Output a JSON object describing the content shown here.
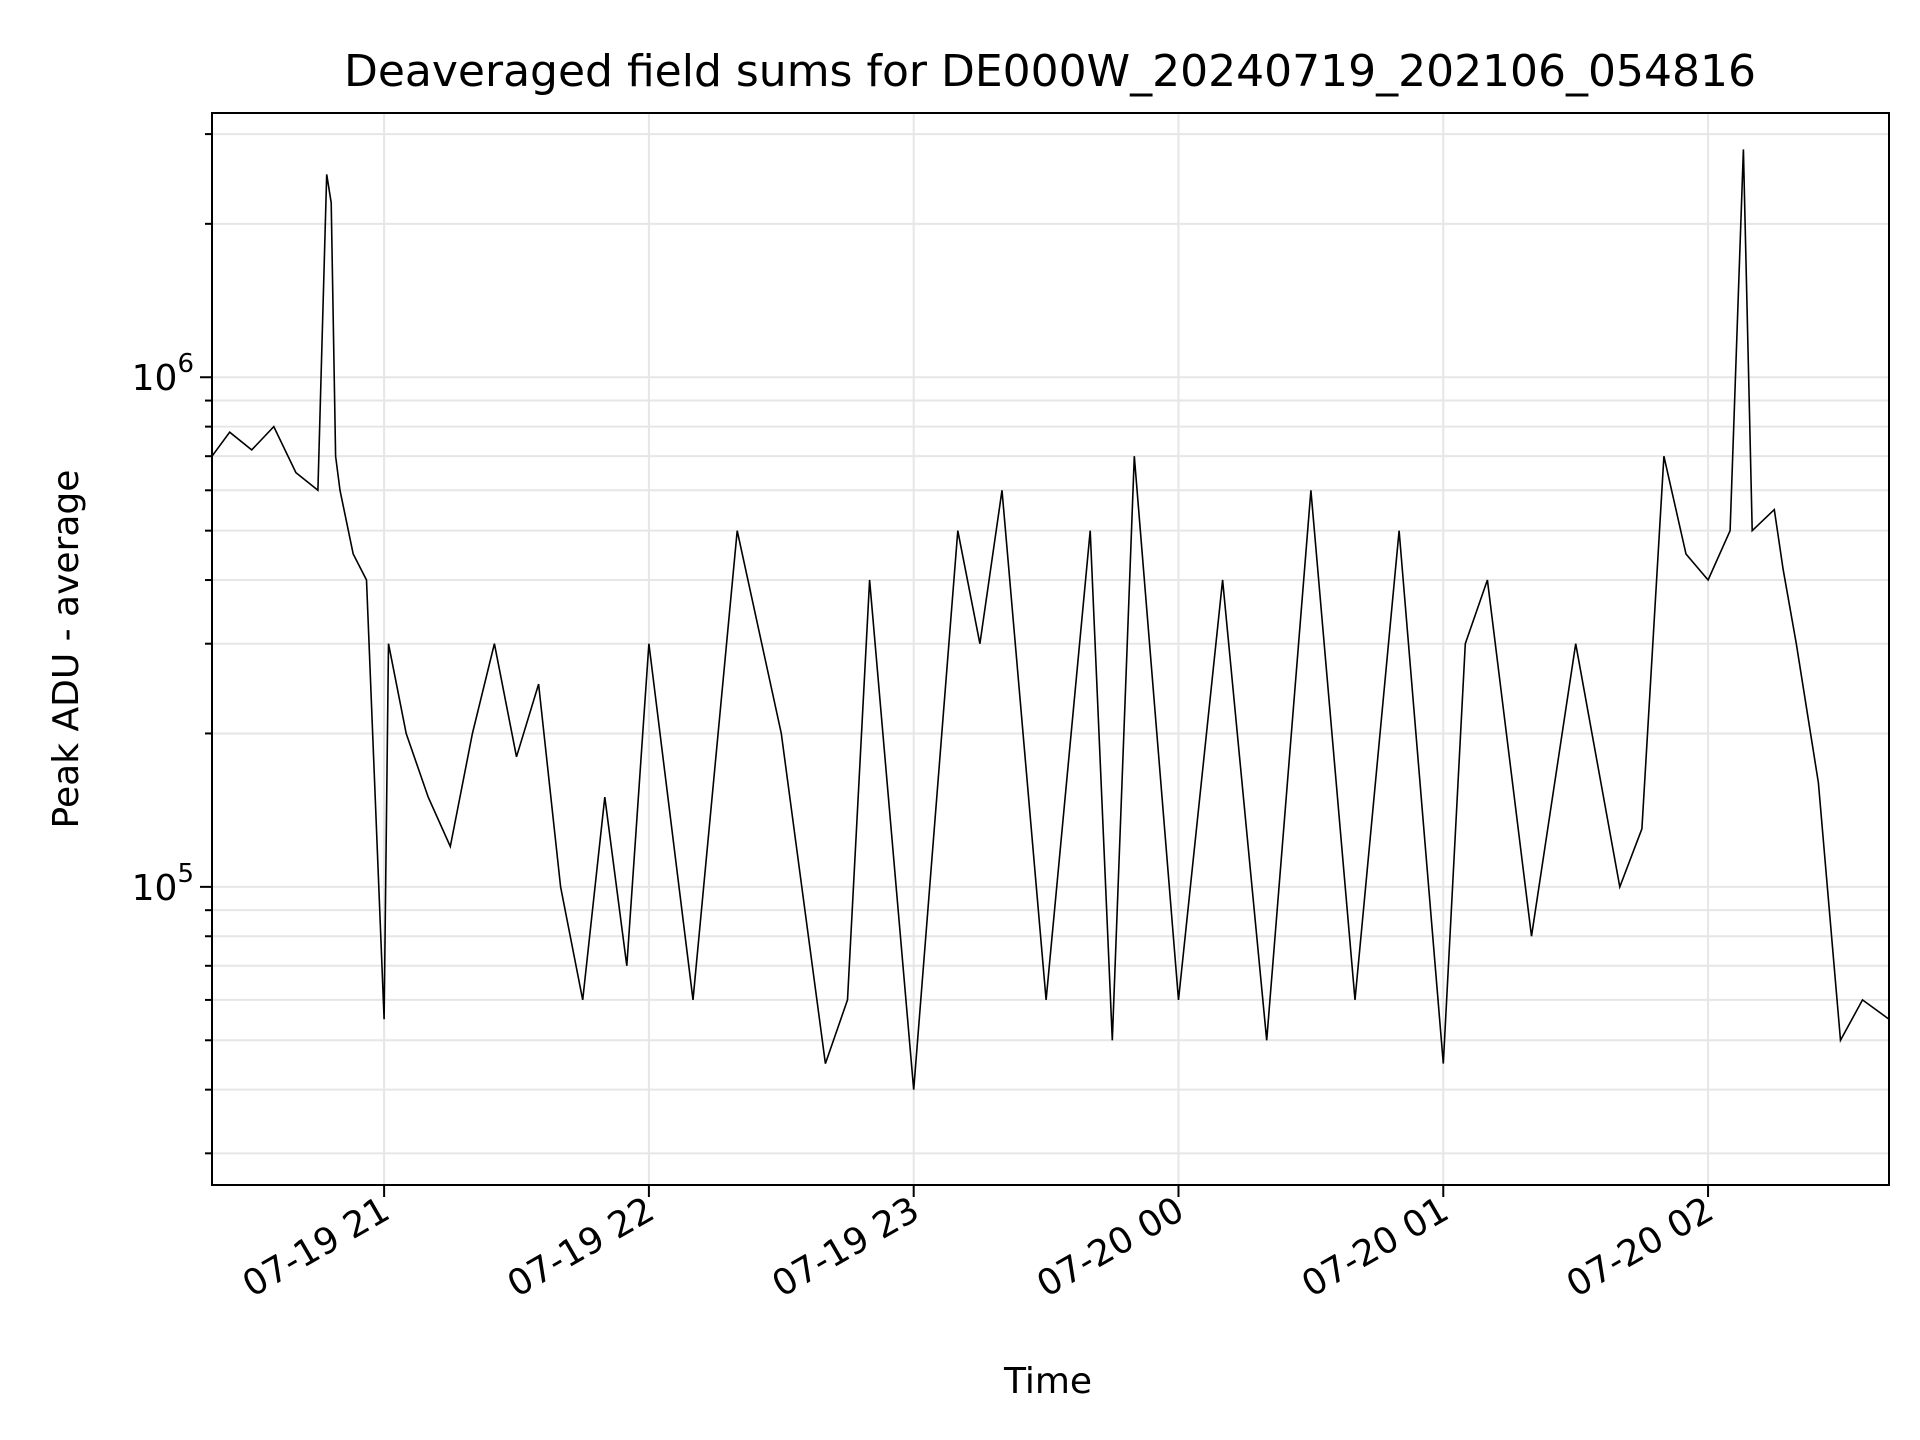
{
  "chart_data": {
    "type": "line",
    "title": "Deaveraged field sums for DE000W_20240719_202106_054816",
    "xlabel": "Time",
    "ylabel": "Peak ADU - average",
    "yscale": "log",
    "ylim": [
      26000,
      3300000
    ],
    "xlim": [
      "2024-07-19 20:21",
      "2024-07-20 02:41"
    ],
    "grid": true,
    "x_ticks": [
      {
        "value": "2024-07-19 21:00",
        "label": "07-19 21"
      },
      {
        "value": "2024-07-19 22:00",
        "label": "07-19 22"
      },
      {
        "value": "2024-07-19 23:00",
        "label": "07-19 23"
      },
      {
        "value": "2024-07-20 00:00",
        "label": "07-20 00"
      },
      {
        "value": "2024-07-20 01:00",
        "label": "07-20 01"
      },
      {
        "value": "2024-07-20 02:00",
        "label": "07-20 02"
      }
    ],
    "y_ticks": [
      {
        "value": 100000,
        "base": "10",
        "exp": "5"
      },
      {
        "value": 1000000,
        "base": "10",
        "exp": "6"
      }
    ],
    "line_color": "#000000",
    "series": [
      {
        "x": [
          "2024-07-19 20:21",
          "2024-07-19 20:25",
          "2024-07-19 20:30",
          "2024-07-19 20:35",
          "2024-07-19 20:40",
          "2024-07-19 20:45",
          "2024-07-19 20:47",
          "2024-07-19 20:48",
          "2024-07-19 20:49",
          "2024-07-19 20:50",
          "2024-07-19 20:53",
          "2024-07-19 20:56",
          "2024-07-19 21:00",
          "2024-07-19 21:01",
          "2024-07-19 21:05",
          "2024-07-19 21:10",
          "2024-07-19 21:15",
          "2024-07-19 21:20",
          "2024-07-19 21:25",
          "2024-07-19 21:30",
          "2024-07-19 21:35",
          "2024-07-19 21:40",
          "2024-07-19 21:45",
          "2024-07-19 21:50",
          "2024-07-19 21:55",
          "2024-07-19 22:00",
          "2024-07-19 22:10",
          "2024-07-19 22:20",
          "2024-07-19 22:30",
          "2024-07-19 22:40",
          "2024-07-19 22:45",
          "2024-07-19 22:50",
          "2024-07-19 23:00",
          "2024-07-19 23:10",
          "2024-07-19 23:15",
          "2024-07-19 23:20",
          "2024-07-19 23:30",
          "2024-07-19 23:40",
          "2024-07-19 23:45",
          "2024-07-19 23:50",
          "2024-07-20 00:00",
          "2024-07-20 00:10",
          "2024-07-20 00:20",
          "2024-07-20 00:30",
          "2024-07-20 00:40",
          "2024-07-20 00:50",
          "2024-07-20 01:00",
          "2024-07-20 01:05",
          "2024-07-20 01:10",
          "2024-07-20 01:20",
          "2024-07-20 01:30",
          "2024-07-20 01:40",
          "2024-07-20 01:45",
          "2024-07-20 01:50",
          "2024-07-20 01:55",
          "2024-07-20 02:00",
          "2024-07-20 02:05",
          "2024-07-20 02:08",
          "2024-07-20 02:10",
          "2024-07-20 02:15",
          "2024-07-20 02:17",
          "2024-07-20 02:20",
          "2024-07-20 02:25",
          "2024-07-20 02:30",
          "2024-07-20 02:35",
          "2024-07-20 02:41"
        ],
        "values": [
          700000,
          780000,
          720000,
          800000,
          650000,
          600000,
          2500000,
          2200000,
          700000,
          600000,
          450000,
          400000,
          55000,
          300000,
          200000,
          150000,
          120000,
          200000,
          300000,
          180000,
          250000,
          100000,
          60000,
          150000,
          70000,
          300000,
          60000,
          500000,
          200000,
          45000,
          60000,
          400000,
          40000,
          500000,
          300000,
          600000,
          60000,
          500000,
          50000,
          700000,
          60000,
          400000,
          50000,
          600000,
          60000,
          500000,
          45000,
          300000,
          400000,
          80000,
          300000,
          100000,
          130000,
          700000,
          450000,
          400000,
          500000,
          2800000,
          500000,
          550000,
          420000,
          300000,
          160000,
          50000,
          60000,
          55000
        ]
      }
    ]
  }
}
